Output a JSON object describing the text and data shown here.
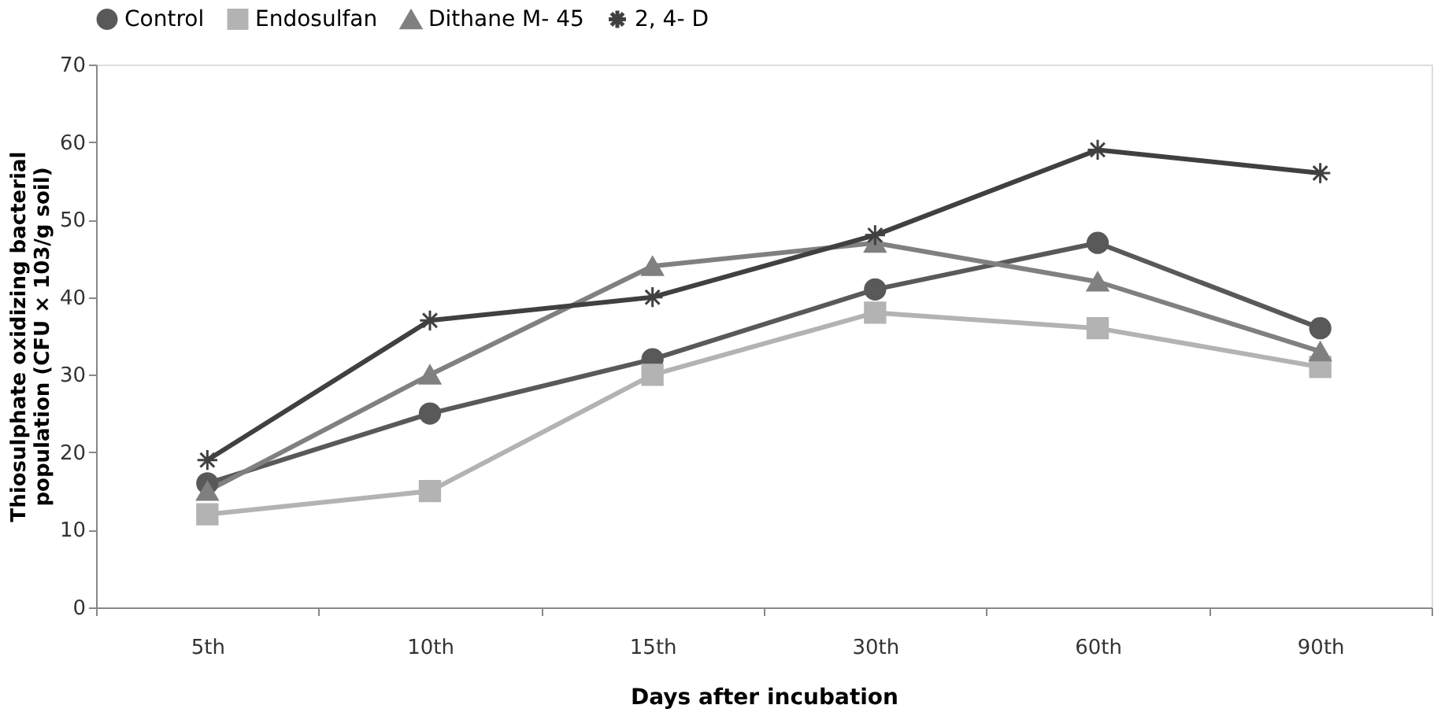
{
  "chart_data": {
    "type": "line",
    "xlabel": "Days after incubation",
    "ylabel": "Thiosulphate oxidizing bacterial population (CFU × 103/g soil)",
    "categories": [
      "5th",
      "10th",
      "15th",
      "30th",
      "60th",
      "90th"
    ],
    "series": [
      {
        "name": "Control",
        "color": "#595959",
        "marker": "circle",
        "values": [
          16,
          25,
          32,
          41,
          47,
          36
        ]
      },
      {
        "name": "Endosulfan",
        "color": "#b3b3b3",
        "marker": "square",
        "values": [
          12,
          15,
          30,
          38,
          36,
          31
        ]
      },
      {
        "name": "Dithane M- 45",
        "color": "#808080",
        "marker": "triangle",
        "values": [
          15,
          30,
          44,
          47,
          42,
          33
        ]
      },
      {
        "name": "2, 4- D",
        "color": "#404040",
        "marker": "cross",
        "values": [
          19,
          37,
          40,
          48,
          59,
          56
        ]
      }
    ],
    "ylim": [
      0,
      70
    ],
    "yticks": [
      0,
      10,
      20,
      30,
      40,
      50,
      60,
      70
    ],
    "grid": false,
    "legend": "top",
    "line_style": "solid"
  }
}
